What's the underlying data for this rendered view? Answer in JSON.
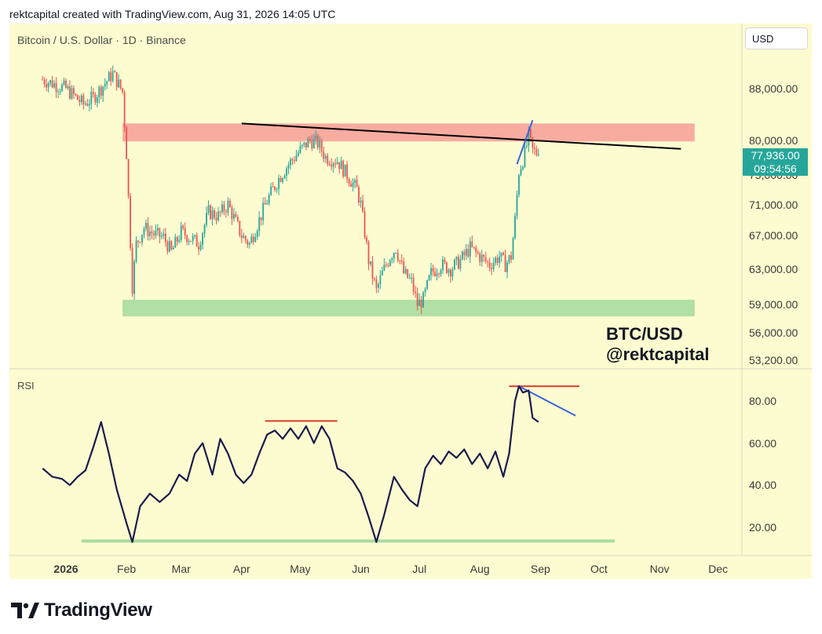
{
  "header": {
    "text": "rektcapital created with TradingView.com, Aug 31, 2026 14:05 UTC"
  },
  "symbol_title": "Bitcoin / U.S. Dollar · 1D · Binance",
  "currency": "USD",
  "price_tag": {
    "price": "77,936.00",
    "countdown": "09:54:56"
  },
  "watermark": {
    "line1": "BTC/USD",
    "line2": "@rektcapital"
  },
  "rsi_title": "RSI",
  "footer": {
    "logo_text": "TradingView"
  },
  "colors": {
    "bull": "#26a69a",
    "bear": "#ef5350",
    "rsi_line": "#1a1a4e",
    "resistance_zone": "#f7a39a",
    "support_zone": "#a8dba0",
    "trendline": "#000000",
    "blue_line": "#3a64d8",
    "red_line": "#d93a2b",
    "green_line": "#a8dba0",
    "chart_bg": "#fdfcd0",
    "price_tag": "#26a69a"
  },
  "chart_data": [
    {
      "type": "candlestick",
      "title": "Bitcoin / U.S. Dollar · 1D · Binance",
      "y_scale": "log",
      "y_ticks": [
        "88,000.00",
        "80,000.00",
        "75,000.00",
        "71,000.00",
        "67,000.00",
        "63,000.00",
        "59,000.00",
        "56,000.00",
        "53,200.00"
      ],
      "y_tick_values": [
        88000,
        80000,
        75000,
        71000,
        67000,
        63000,
        59000,
        56000,
        53200
      ],
      "x_ticks": [
        "2026",
        "Feb",
        "Mar",
        "Apr",
        "May",
        "Jun",
        "Jul",
        "Aug",
        "Sep",
        "Oct",
        "Nov",
        "Dec"
      ],
      "x_tick_dates": [
        "2026-01-01",
        "2026-02-01",
        "2026-03-01",
        "2026-04-01",
        "2026-05-01",
        "2026-06-01",
        "2026-07-01",
        "2026-08-01",
        "2026-09-01",
        "2026-10-01",
        "2026-11-01",
        "2026-12-01"
      ],
      "last_price": 77936,
      "closes": [
        {
          "date": "2025-12-20",
          "close": 89500
        },
        {
          "date": "2026-01-01",
          "close": 88000
        },
        {
          "date": "2026-01-10",
          "close": 85500
        },
        {
          "date": "2026-01-15",
          "close": 86500
        },
        {
          "date": "2026-01-20",
          "close": 88500
        },
        {
          "date": "2026-01-25",
          "close": 90500
        },
        {
          "date": "2026-01-30",
          "close": 87500
        },
        {
          "date": "2026-02-01",
          "close": 78000
        },
        {
          "date": "2026-02-04",
          "close": 61000
        },
        {
          "date": "2026-02-06",
          "close": 66000
        },
        {
          "date": "2026-02-10",
          "close": 68000
        },
        {
          "date": "2026-02-15",
          "close": 67200
        },
        {
          "date": "2026-02-20",
          "close": 66800
        },
        {
          "date": "2026-02-24",
          "close": 65000
        },
        {
          "date": "2026-03-01",
          "close": 67500
        },
        {
          "date": "2026-03-10",
          "close": 66000
        },
        {
          "date": "2026-03-15",
          "close": 70000
        },
        {
          "date": "2026-03-20",
          "close": 69500
        },
        {
          "date": "2026-03-25",
          "close": 71000
        },
        {
          "date": "2026-04-01",
          "close": 67000
        },
        {
          "date": "2026-04-05",
          "close": 66000
        },
        {
          "date": "2026-04-10",
          "close": 69000
        },
        {
          "date": "2026-04-14",
          "close": 71500
        },
        {
          "date": "2026-04-20",
          "close": 74500
        },
        {
          "date": "2026-04-25",
          "close": 76500
        },
        {
          "date": "2026-05-01",
          "close": 78500
        },
        {
          "date": "2026-05-06",
          "close": 80000
        },
        {
          "date": "2026-05-10",
          "close": 79500
        },
        {
          "date": "2026-05-14",
          "close": 77500
        },
        {
          "date": "2026-05-20",
          "close": 77000
        },
        {
          "date": "2026-05-25",
          "close": 75000
        },
        {
          "date": "2026-05-30",
          "close": 73000
        },
        {
          "date": "2026-06-01",
          "close": 71000
        },
        {
          "date": "2026-06-05",
          "close": 64000
        },
        {
          "date": "2026-06-09",
          "close": 60500
        },
        {
          "date": "2026-06-12",
          "close": 62500
        },
        {
          "date": "2026-06-16",
          "close": 64500
        },
        {
          "date": "2026-06-19",
          "close": 65500
        },
        {
          "date": "2026-06-23",
          "close": 62500
        },
        {
          "date": "2026-06-27",
          "close": 61500
        },
        {
          "date": "2026-06-30",
          "close": 59000
        },
        {
          "date": "2026-07-03",
          "close": 59500
        },
        {
          "date": "2026-07-07",
          "close": 62500
        },
        {
          "date": "2026-07-12",
          "close": 63500
        },
        {
          "date": "2026-07-17",
          "close": 63000
        },
        {
          "date": "2026-07-22",
          "close": 64000
        },
        {
          "date": "2026-07-27",
          "close": 65500
        },
        {
          "date": "2026-08-01",
          "close": 64500
        },
        {
          "date": "2026-08-06",
          "close": 63500
        },
        {
          "date": "2026-08-11",
          "close": 64500
        },
        {
          "date": "2026-08-14",
          "close": 63500
        },
        {
          "date": "2026-08-17",
          "close": 64500
        },
        {
          "date": "2026-08-19",
          "close": 69000
        },
        {
          "date": "2026-08-21",
          "close": 75500
        },
        {
          "date": "2026-08-24",
          "close": 78000
        },
        {
          "date": "2026-08-26",
          "close": 80500
        },
        {
          "date": "2026-08-28",
          "close": 78500
        },
        {
          "date": "2026-08-31",
          "close": 77936
        }
      ],
      "annotations": [
        {
          "type": "zone",
          "name": "resistance",
          "y_range": [
            79800,
            82500
          ],
          "x_range": [
            "2026-01-30",
            "2026-11-19"
          ]
        },
        {
          "type": "zone",
          "name": "support",
          "y_range": [
            57700,
            59500
          ],
          "x_range": [
            "2026-01-30",
            "2026-11-19"
          ]
        },
        {
          "type": "trendline",
          "name": "descending-resistance",
          "from": {
            "date": "2026-04-01",
            "value": 82500
          },
          "to": {
            "date": "2026-11-12",
            "value": 78700
          }
        },
        {
          "type": "trendline",
          "name": "breakout-channel",
          "from": {
            "date": "2026-08-20",
            "value": 76500
          },
          "to": {
            "date": "2026-08-28",
            "value": 83000
          }
        }
      ]
    },
    {
      "type": "line",
      "title": "RSI",
      "y_ticks": [
        "80.00",
        "60.00",
        "40.00",
        "20.00"
      ],
      "y_tick_values": [
        80,
        60,
        40,
        20
      ],
      "ylim": [
        8,
        89
      ],
      "series": [
        {
          "points": [
            {
              "date": "2025-12-20",
              "value": 48
            },
            {
              "date": "2025-12-25",
              "value": 44
            },
            {
              "date": "2025-12-30",
              "value": 43
            },
            {
              "date": "2026-01-03",
              "value": 40
            },
            {
              "date": "2026-01-07",
              "value": 44
            },
            {
              "date": "2026-01-11",
              "value": 47
            },
            {
              "date": "2026-01-15",
              "value": 58
            },
            {
              "date": "2026-01-19",
              "value": 70
            },
            {
              "date": "2026-01-23",
              "value": 55
            },
            {
              "date": "2026-01-27",
              "value": 38
            },
            {
              "date": "2026-02-01",
              "value": 22
            },
            {
              "date": "2026-02-04",
              "value": 13
            },
            {
              "date": "2026-02-08",
              "value": 30
            },
            {
              "date": "2026-02-13",
              "value": 36
            },
            {
              "date": "2026-02-18",
              "value": 32
            },
            {
              "date": "2026-02-23",
              "value": 36
            },
            {
              "date": "2026-02-28",
              "value": 45
            },
            {
              "date": "2026-03-04",
              "value": 42
            },
            {
              "date": "2026-03-08",
              "value": 55
            },
            {
              "date": "2026-03-12",
              "value": 60
            },
            {
              "date": "2026-03-17",
              "value": 45
            },
            {
              "date": "2026-03-21",
              "value": 62
            },
            {
              "date": "2026-03-25",
              "value": 55
            },
            {
              "date": "2026-03-29",
              "value": 45
            },
            {
              "date": "2026-04-02",
              "value": 41
            },
            {
              "date": "2026-04-06",
              "value": 45
            },
            {
              "date": "2026-04-10",
              "value": 55
            },
            {
              "date": "2026-04-14",
              "value": 64
            },
            {
              "date": "2026-04-18",
              "value": 66
            },
            {
              "date": "2026-04-22",
              "value": 62
            },
            {
              "date": "2026-04-26",
              "value": 67
            },
            {
              "date": "2026-04-30",
              "value": 62
            },
            {
              "date": "2026-05-04",
              "value": 68
            },
            {
              "date": "2026-05-08",
              "value": 60
            },
            {
              "date": "2026-05-12",
              "value": 68
            },
            {
              "date": "2026-05-16",
              "value": 62
            },
            {
              "date": "2026-05-20",
              "value": 48
            },
            {
              "date": "2026-05-24",
              "value": 46
            },
            {
              "date": "2026-05-28",
              "value": 42
            },
            {
              "date": "2026-06-01",
              "value": 36
            },
            {
              "date": "2026-06-05",
              "value": 25
            },
            {
              "date": "2026-06-09",
              "value": 13
            },
            {
              "date": "2026-06-13",
              "value": 26
            },
            {
              "date": "2026-06-18",
              "value": 44
            },
            {
              "date": "2026-06-22",
              "value": 38
            },
            {
              "date": "2026-06-26",
              "value": 33
            },
            {
              "date": "2026-06-30",
              "value": 30
            },
            {
              "date": "2026-07-04",
              "value": 48
            },
            {
              "date": "2026-07-08",
              "value": 54
            },
            {
              "date": "2026-07-12",
              "value": 50
            },
            {
              "date": "2026-07-16",
              "value": 56
            },
            {
              "date": "2026-07-20",
              "value": 53
            },
            {
              "date": "2026-07-24",
              "value": 57
            },
            {
              "date": "2026-07-28",
              "value": 50
            },
            {
              "date": "2026-08-01",
              "value": 55
            },
            {
              "date": "2026-08-05",
              "value": 48
            },
            {
              "date": "2026-08-09",
              "value": 56
            },
            {
              "date": "2026-08-13",
              "value": 44
            },
            {
              "date": "2026-08-16",
              "value": 55
            },
            {
              "date": "2026-08-19",
              "value": 80
            },
            {
              "date": "2026-08-21",
              "value": 87
            },
            {
              "date": "2026-08-23",
              "value": 84
            },
            {
              "date": "2026-08-26",
              "value": 85
            },
            {
              "date": "2026-08-28",
              "value": 72
            },
            {
              "date": "2026-08-31",
              "value": 70
            }
          ]
        }
      ],
      "annotations": [
        {
          "type": "hline",
          "name": "rsi-peak-may",
          "value": 70.5,
          "x_range": [
            "2026-04-13",
            "2026-05-20"
          ]
        },
        {
          "type": "hline",
          "name": "rsi-peak-aug",
          "value": 87,
          "x_range": [
            "2026-08-16",
            "2026-09-21"
          ]
        },
        {
          "type": "hline",
          "name": "rsi-floor",
          "value": 13.5,
          "x_range": [
            "2026-01-09",
            "2026-10-09"
          ]
        },
        {
          "type": "trendline",
          "name": "rsi-descending",
          "from": {
            "date": "2026-08-21",
            "value": 87
          },
          "to": {
            "date": "2026-09-19",
            "value": 73
          }
        }
      ]
    }
  ]
}
